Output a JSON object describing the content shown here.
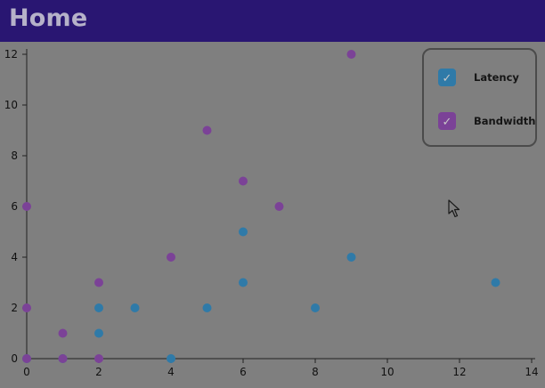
{
  "header": {
    "title": "Home"
  },
  "legend": {
    "items": [
      {
        "label": "Latency",
        "color": "#2f7aa8",
        "checked": true
      },
      {
        "label": "Bandwidth",
        "color": "#7b4297",
        "checked": true
      }
    ]
  },
  "chart_data": {
    "type": "scatter",
    "xlim": [
      0,
      14
    ],
    "ylim": [
      0,
      12
    ],
    "x_ticks": [
      0,
      2,
      4,
      6,
      8,
      10,
      12,
      14
    ],
    "y_ticks": [
      0,
      2,
      4,
      6,
      8,
      10,
      12
    ],
    "grid": false,
    "legend_position": "top-right",
    "series": [
      {
        "name": "Latency",
        "color": "#2f7aa8",
        "points": [
          [
            0,
            0
          ],
          [
            1,
            0
          ],
          [
            2,
            1
          ],
          [
            2,
            2
          ],
          [
            3,
            2
          ],
          [
            4,
            0
          ],
          [
            5,
            2
          ],
          [
            6,
            3
          ],
          [
            6,
            5
          ],
          [
            8,
            2
          ],
          [
            9,
            4
          ],
          [
            13,
            3
          ]
        ]
      },
      {
        "name": "Bandwidth",
        "color": "#7b4297",
        "points": [
          [
            0,
            0
          ],
          [
            0,
            2
          ],
          [
            0,
            6
          ],
          [
            1,
            1
          ],
          [
            1,
            0
          ],
          [
            2,
            0
          ],
          [
            2,
            3
          ],
          [
            4,
            4
          ],
          [
            5,
            9
          ],
          [
            6,
            7
          ],
          [
            7,
            6
          ],
          [
            9,
            12
          ]
        ]
      }
    ]
  }
}
